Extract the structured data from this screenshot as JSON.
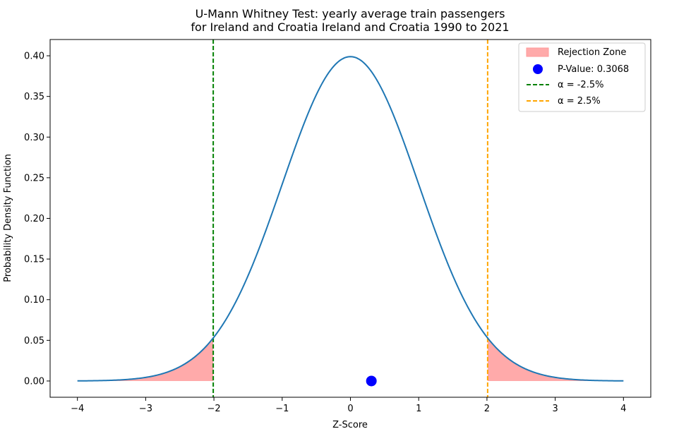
{
  "chart_data": {
    "type": "line",
    "title_line1": "U-Mann Whitney Test: yearly average train passengers",
    "title_line2": "for Ireland and Croatia Ireland and Croatia 1990 to 2021",
    "xlabel": "Z-Score",
    "ylabel": "Probability Density Function",
    "xlim": [
      -4.4,
      4.4
    ],
    "ylim": [
      -0.02,
      0.42
    ],
    "x_ticks": [
      -4,
      -3,
      -2,
      -1,
      0,
      1,
      2,
      3,
      4
    ],
    "x_tick_labels": [
      "−4",
      "−3",
      "−2",
      "−1",
      "0",
      "1",
      "2",
      "3",
      "4"
    ],
    "y_ticks": [
      0.0,
      0.05,
      0.1,
      0.15,
      0.2,
      0.25,
      0.3,
      0.35,
      0.4
    ],
    "y_tick_labels": [
      "0.00",
      "0.05",
      "0.10",
      "0.15",
      "0.20",
      "0.25",
      "0.30",
      "0.35",
      "0.40"
    ],
    "series": [
      {
        "curve": "standard normal pdf",
        "x_range": [
          -4,
          4
        ],
        "color": "#1f77b4"
      }
    ],
    "rejection_zone": {
      "left_bound": -2.01,
      "right_bound": 2.01,
      "color": "#ffaaaa"
    },
    "p_value_point": {
      "x": 0.3068,
      "y": 0.0,
      "color": "#0000ff"
    },
    "critical_lines": [
      {
        "x": -2.01,
        "color": "#008000"
      },
      {
        "x": 2.01,
        "color": "#ffa500"
      }
    ],
    "legend": {
      "position": "top-right",
      "entries": [
        {
          "label": "Rejection Zone",
          "kind": "patch",
          "color": "#ffaaaa"
        },
        {
          "label": "P-Value: 0.3068",
          "kind": "marker",
          "color": "#0000ff"
        },
        {
          "label": "α = -2.5%",
          "kind": "dashed",
          "color": "#008000"
        },
        {
          "label": "α = 2.5%",
          "kind": "dashed",
          "color": "#ffa500"
        }
      ]
    }
  }
}
